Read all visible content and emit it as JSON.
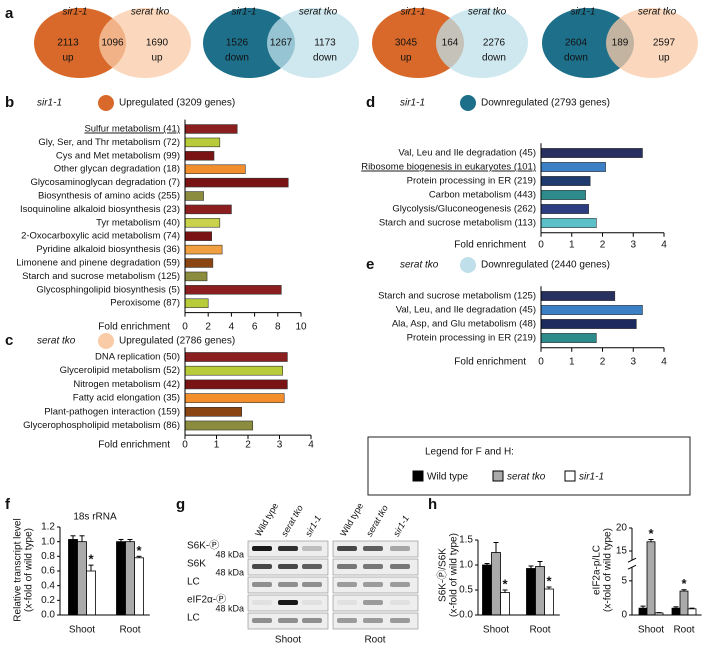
{
  "venn": {
    "panel": "a",
    "diagrams": [
      {
        "left_label": "sir1-1",
        "right_label": "serat tko",
        "left": 2113,
        "left_dir": "up",
        "middle": 1096,
        "right": 1690,
        "right_dir": "up",
        "left_color": "#d8692a",
        "right_color": "#f9cba7"
      },
      {
        "left_label": "sir1-1",
        "right_label": "serat tko",
        "left": 1526,
        "left_dir": "down",
        "middle": 1267,
        "right": 1173,
        "right_dir": "down",
        "left_color": "#1e6f8a",
        "right_color": "#bfe0ea"
      },
      {
        "left_label": "sir1-1",
        "right_label": "serat tko",
        "left": 3045,
        "left_dir": "up",
        "middle": 164,
        "right": 2276,
        "right_dir": "down",
        "left_color": "#d8692a",
        "right_color": "#bfe0ea"
      },
      {
        "left_label": "sir1-1",
        "right_label": "serat tko",
        "left": 2604,
        "left_dir": "down",
        "middle": 189,
        "right": 2597,
        "right_dir": "up",
        "left_color": "#1e6f8a",
        "right_color": "#f9cba7"
      }
    ]
  },
  "chart_data": [
    {
      "type": "hbar",
      "panel": "b",
      "title": "sir1-1",
      "subtitle": "Upregulated (3209 genes)",
      "marker_color": "#d8692a",
      "categories": [
        "Sulfur metabolism (41)",
        "Gly, Ser, and Thr metabolism (72)",
        "Cys and Met metabolism (99)",
        "Other glycan degradation (18)",
        "Glycosaminoglycan degradation (7)",
        "Biosynthesis of amino acids (255)",
        "Isoquinoline alkaloid biosynthesis (23)",
        "Tyr metabolism (40)",
        "2-Oxocarboxylic acid metabolism (74)",
        "Pyridine alkaloid biosynthesis (36)",
        "Limonene and pinene degradation (59)",
        "Starch and sucrose metabolism (125)",
        "Glycosphingolipid biosynthesis (5)",
        "Peroxisome (87)"
      ],
      "values": [
        4.5,
        3.0,
        2.5,
        5.2,
        8.9,
        1.6,
        4.0,
        3.0,
        2.3,
        3.2,
        2.4,
        1.9,
        8.3,
        2.0
      ],
      "colors": [
        "#8b1e1e",
        "#b8cc3a",
        "#7a1414",
        "#f28e2b",
        "#7a1414",
        "#8c8c3e",
        "#8b1e1e",
        "#c9d24a",
        "#7a1414",
        "#f0a040",
        "#8b4513",
        "#8c8c3e",
        "#8b1e1e",
        "#b8cc3a"
      ],
      "underline": [
        0
      ],
      "xlabel": "Fold enrichment",
      "xlim": [
        0,
        10
      ],
      "xticks": [
        0,
        2,
        4,
        6,
        8,
        10
      ]
    },
    {
      "type": "hbar",
      "panel": "c",
      "title": "serat tko",
      "subtitle": "Upregulated (2786 genes)",
      "marker_color": "#f9cba7",
      "categories": [
        "DNA replication (50)",
        "Glycerolipid metabolism (52)",
        "Nitrogen metabolism (42)",
        "Fatty acid elongation (35)",
        "Plant-pathogen interaction (159)",
        "Glycerophospholipid metabolism (86)"
      ],
      "values": [
        3.25,
        3.1,
        3.25,
        3.15,
        1.8,
        2.15
      ],
      "colors": [
        "#8b1e1e",
        "#b8cc3a",
        "#7a1414",
        "#f28e2b",
        "#8b4513",
        "#8c8c3e"
      ],
      "xlabel": "Fold enrichment",
      "xlim": [
        0,
        4
      ],
      "xticks": [
        0,
        1,
        2,
        3,
        4
      ]
    },
    {
      "type": "hbar",
      "panel": "d",
      "title": "sir1-1",
      "subtitle": "Downregulated (2793 genes)",
      "marker_color": "#1e6f8a",
      "categories": [
        "Val, Leu and Ile degradation (45)",
        "Ribosome biogenesis in eukaryotes (101)",
        "Protein processing in ER (219)",
        "Carbon metabolism (443)",
        "Glycolysis/Gluconeogenesis (262)",
        "Starch and sucrose metabolism (113)"
      ],
      "values": [
        3.3,
        2.1,
        1.6,
        1.45,
        1.55,
        1.8
      ],
      "colors": [
        "#27305e",
        "#3b7fc4",
        "#1e3a6e",
        "#2e8b8b",
        "#2c3e80",
        "#5bc0c8"
      ],
      "underline": [
        1
      ],
      "xlabel": "Fold enrichment",
      "xlim": [
        0,
        4
      ],
      "xticks": [
        0,
        1,
        2,
        3,
        4
      ]
    },
    {
      "type": "hbar",
      "panel": "e",
      "title": "serat tko",
      "subtitle": "Downregulated (2440 genes)",
      "marker_color": "#bfe0ea",
      "categories": [
        "Starch and sucrose metabolism (125)",
        "Val, Leu, and Ile degradation (45)",
        "Ala, Asp, and Glu metabolism (48)",
        "Protein processing in ER (219)"
      ],
      "values": [
        2.4,
        3.3,
        3.1,
        1.8
      ],
      "colors": [
        "#27305e",
        "#3b7fc4",
        "#1e2a5e",
        "#2e8b8b"
      ],
      "xlabel": "Fold enrichment",
      "xlim": [
        0,
        4
      ],
      "xticks": [
        0,
        1,
        2,
        3,
        4
      ]
    },
    {
      "type": "bar",
      "panel": "f",
      "title": "18s rRNA",
      "ylabel": [
        "Relative transcript level",
        "(x-fold of wild type)"
      ],
      "categories": [
        "Shoot",
        "Root"
      ],
      "series": [
        {
          "name": "Wild type",
          "color": "#000000",
          "values": [
            1.03,
            1.0
          ],
          "errors": [
            0.05,
            0.03
          ]
        },
        {
          "name": "serat tko",
          "color": "#aaaaaa",
          "values": [
            1.0,
            1.0
          ],
          "errors": [
            0.08,
            0.03
          ]
        },
        {
          "name": "sir1-1",
          "color": "#ffffff",
          "values": [
            0.6,
            0.78
          ],
          "errors": [
            0.08,
            0.02
          ],
          "significance": [
            "*",
            "*"
          ]
        }
      ],
      "ylim": [
        0,
        1.2
      ],
      "yticks": [
        {
          "value": 0,
          "label": "0.0"
        },
        {
          "value": 0.2,
          "label": "0.2"
        },
        {
          "value": 0.4,
          "label": "0.4"
        },
        {
          "value": 0.6,
          "label": "0.6"
        },
        {
          "value": 0.8,
          "label": "0.8"
        },
        {
          "value": 1.0,
          "label": "1.0"
        },
        {
          "value": 1.2,
          "label": "1.2"
        }
      ],
      "legend_title": "Legend for F and H:"
    },
    {
      "type": "bar",
      "panel": "h",
      "ylabel": [
        "S6K-Ⓟ/S6K",
        "(x-fold of wild type)"
      ],
      "categories": [
        "Shoot",
        "Root"
      ],
      "series": [
        {
          "name": "Wild type",
          "color": "#000000",
          "values": [
            1.0,
            0.93
          ],
          "errors": [
            0.03,
            0.05
          ]
        },
        {
          "name": "serat tko",
          "color": "#aaaaaa",
          "values": [
            1.25,
            0.97
          ],
          "errors": [
            0.2,
            0.1
          ]
        },
        {
          "name": "sir1-1",
          "color": "#ffffff",
          "values": [
            0.45,
            0.52
          ],
          "errors": [
            0.05,
            0.04
          ],
          "significance": [
            "*",
            "*"
          ]
        }
      ],
      "ylim": [
        0,
        1.5
      ],
      "yticks": [
        {
          "value": 0,
          "label": "0.0"
        },
        {
          "value": 0.5,
          "label": "0.5"
        },
        {
          "value": 1.0,
          "label": "1.0"
        },
        {
          "value": 1.5,
          "label": "1.5"
        }
      ]
    },
    {
      "type": "bar",
      "ylabel": [
        "eIF2a-p/LC",
        "(x-fold of wild type)"
      ],
      "categories": [
        "Shoot",
        "Root"
      ],
      "series": [
        {
          "name": "Wild type",
          "color": "#000000",
          "values": [
            1.0,
            1.0
          ],
          "errors": [
            0.3,
            0.2
          ]
        },
        {
          "name": "serat tko",
          "color": "#aaaaaa",
          "values": [
            17,
            3.5
          ],
          "errors": [
            0.5,
            0.2
          ],
          "significance": [
            "*",
            "*"
          ]
        },
        {
          "name": "sir1-1",
          "color": "#ffffff",
          "values": [
            0.3,
            0.9
          ],
          "errors": [
            0.05,
            0.1
          ]
        }
      ],
      "ylim": [
        0,
        20
      ],
      "yticks": [
        0,
        5,
        15,
        20
      ],
      "axis_break": [
        7,
        13
      ]
    }
  ],
  "blot": {
    "panel": "g",
    "lanes": [
      "Wild type",
      "serat tko",
      "sir1-1"
    ],
    "rows": [
      "S6K-Ⓟ",
      "S6K",
      "LC",
      "eIF2α-Ⓟ",
      "LC"
    ],
    "markers": [
      "48 kDa",
      "48 kDa",
      "48 kDa"
    ],
    "tissues": [
      "Shoot",
      "Root"
    ]
  }
}
